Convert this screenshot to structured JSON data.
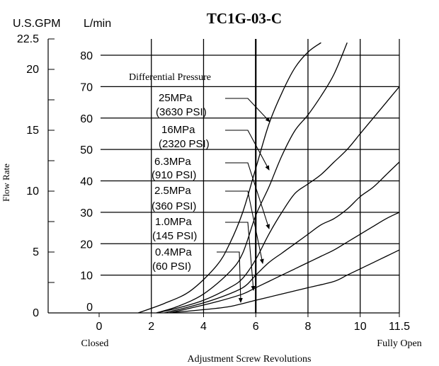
{
  "chart_data": {
    "type": "line",
    "title": "TC1G-03-C",
    "xlabel": "Adjustment Screw Revolutions",
    "ylabel": "Flow Rate",
    "left_unit_label": "U.S.GPM",
    "right_unit_label": "L/min",
    "xlim": [
      -2,
      11.5
    ],
    "ylim_lmin": [
      -2,
      85
    ],
    "ylim_gpm": [
      0,
      22.5
    ],
    "x_ticks": [
      "0",
      "2",
      "4",
      "6",
      "8",
      "10",
      "11.5"
    ],
    "x_tick_values": [
      0,
      2,
      4,
      6,
      8,
      10,
      11.5
    ],
    "x_end_labels": {
      "closed": "Closed",
      "fully_open": "Fully Open"
    },
    "y_ticks_lmin": [
      "0",
      "10",
      "20",
      "30",
      "40",
      "50",
      "60",
      "70",
      "80"
    ],
    "y_tick_values_lmin": [
      0,
      10,
      20,
      30,
      40,
      50,
      60,
      70,
      80
    ],
    "y_ticks_gpm": [
      "0",
      "5",
      "10",
      "15",
      "20",
      "22.5"
    ],
    "y_tick_values_gpm": [
      0,
      5,
      10,
      15,
      20,
      22.5
    ],
    "grid": true,
    "legend_title": "Differential Pressure",
    "series": [
      {
        "name": "25MPa (3630 PSI)",
        "line1": "25MPa",
        "line2": "(3630 PSI)",
        "x": [
          1.5,
          2.5,
          3.5,
          4.5,
          5.0,
          5.5,
          6.0,
          6.5,
          7.0,
          7.5,
          8.0,
          8.5
        ],
        "y": [
          -2,
          1,
          5,
          13,
          20,
          30,
          44,
          58,
          68,
          76,
          81,
          84
        ]
      },
      {
        "name": "16MPa (2320 PSI)",
        "line1": "16MPa",
        "line2": "(2320 PSI)",
        "x": [
          2.2,
          3.0,
          4.0,
          5.0,
          5.5,
          6.0,
          6.5,
          7.0,
          7.5,
          8.0,
          8.5,
          9.0,
          9.5
        ],
        "y": [
          -2,
          0,
          4,
          11,
          17,
          29,
          38,
          48,
          56,
          61,
          67,
          74,
          84
        ]
      },
      {
        "name": "6.3MPa (910 PSI)",
        "line1": "6.3MPa",
        "line2": "(910 PSI)",
        "x": [
          2.2,
          3.0,
          4.0,
          5.0,
          5.5,
          6.0,
          6.5,
          7.0,
          7.5,
          8.0,
          8.5,
          9.0,
          9.5,
          10.0,
          10.5,
          11.0,
          11.5
        ],
        "y": [
          -2,
          -0.5,
          2,
          6,
          9,
          15,
          23,
          30,
          36,
          39,
          42,
          46,
          50,
          55,
          60,
          65,
          70
        ]
      },
      {
        "name": "2.5MPa (360 PSI)",
        "line1": "2.5MPa",
        "line2": "(360 PSI)",
        "x": [
          2.5,
          3.5,
          4.5,
          5.5,
          6.0,
          6.5,
          7.0,
          7.5,
          8.0,
          8.5,
          9.0,
          9.5,
          10.0,
          10.5,
          11.0,
          11.5
        ],
        "y": [
          -2,
          0,
          2.5,
          6,
          10,
          14,
          17,
          20,
          23,
          26,
          28,
          31,
          35,
          38,
          42,
          46
        ]
      },
      {
        "name": "1.0MPa (145 PSI)",
        "line1": "1.0MPa",
        "line2": "(145 PSI)",
        "x": [
          2.7,
          3.5,
          4.5,
          5.5,
          6.0,
          6.5,
          7.0,
          7.5,
          8.0,
          8.5,
          9.0,
          9.5,
          10.0,
          10.5,
          11.0,
          11.5
        ],
        "y": [
          -2,
          -0.5,
          1.5,
          4,
          6,
          8,
          10,
          12,
          14,
          16,
          18,
          20.5,
          23,
          25.5,
          28,
          30
        ]
      },
      {
        "name": "0.4MPa (60 PSI)",
        "line1": "0.4MPa",
        "line2": "(60 PSI)",
        "x": [
          2.7,
          4.0,
          5.0,
          6.0,
          7.0,
          8.0,
          9.0,
          9.5,
          10.0,
          10.5,
          11.0,
          11.5
        ],
        "y": [
          -2,
          -1,
          0,
          2,
          4,
          6,
          8,
          10,
          12,
          14,
          16,
          18
        ]
      }
    ]
  }
}
